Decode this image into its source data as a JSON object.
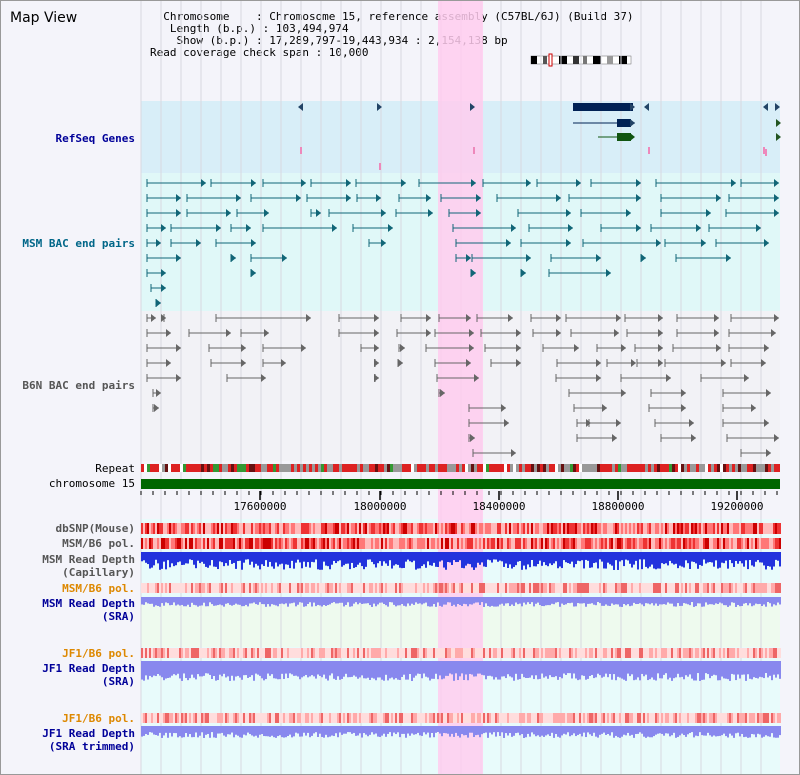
{
  "header": {
    "title": "Map View",
    "info_lines": [
      "  Chromosome    : Chromosome 15, reference assembly (C57BL/6J) (Build 37)",
      "   Length (b.p.) : 103,494,974",
      "    Show (b.p.) : 17,289,797-19,443,934 : 2,154,138 bp",
      "Read coverage check span : 10,000"
    ]
  },
  "tracks": {
    "refseq_label": "RefSeq Genes",
    "msm_bac_label": "MSM BAC end pairs",
    "b6n_bac_label": "B6N BAC end pairs",
    "repeat_label": "Repeat",
    "chromosome_label": "chromosome 15",
    "dbsnp_label": "dbSNP(Mouse)",
    "msm_b6_pol_label": "MSM/B6 pol.",
    "msm_depth_cap_label_1": "MSM Read Depth",
    "msm_depth_cap_label_2": "(Capillary)",
    "msm_b6_pol2_label": "MSM/B6 pol.",
    "msm_depth_sra_label_1": "MSM Read Depth",
    "msm_depth_sra_label_2": "(SRA)",
    "jf1_b6_pol_label": "JF1/B6 pol.",
    "jf1_depth_sra_label_1": "JF1 Read Depth",
    "jf1_depth_sra_label_2": "(SRA)",
    "jf1_b6_pol2_label": "JF1/B6 pol.",
    "jf1_depth_trim_label_1": "JF1 Read Depth",
    "jf1_depth_trim_label_2": "(SRA trimmed)"
  },
  "axis": {
    "ticks": [
      "17600000",
      "18000000",
      "18400000",
      "18800000",
      "19200000"
    ]
  },
  "colors": {
    "label_blue": "#000099",
    "label_teal": "#006688",
    "label_gray": "#555555",
    "label_orange": "#dd8800",
    "highlight": "#ffccee",
    "refseq_bg": "#d8eef8",
    "msm_bg": "#e0f8f8",
    "b6n_bg": "#f2f2f6",
    "chrom": "#006600",
    "depth_blue": "#2233dd",
    "depth_light": "#8888ee"
  },
  "icons": {
    "ideogram": "chromosome-ideogram-icon"
  }
}
